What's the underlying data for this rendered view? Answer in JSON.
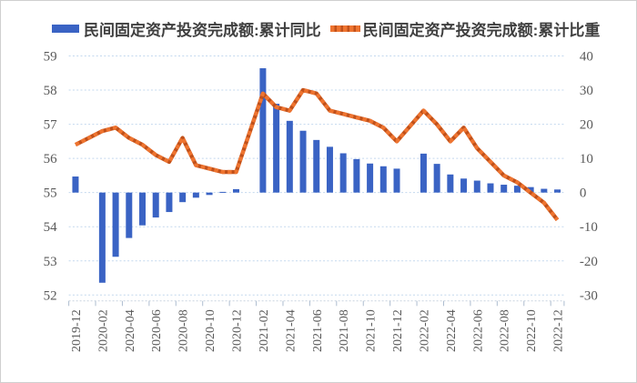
{
  "legend": [
    {
      "label": "民间固定资产投资完成额:累计同比",
      "marker": "bar-swatch",
      "color": "#3a63c4"
    },
    {
      "label": "民间固定资产投资完成额:累计比重",
      "marker": "dashed-line-swatch",
      "color": "#ed7230",
      "color_dark": "#c1511a"
    }
  ],
  "colors": {
    "bar": "#3a63c4",
    "line": "#ee7430",
    "line_dark": "#c1511a",
    "grid": "#c3d8ee",
    "axis_line": "#c9d4e0",
    "axis_text": "#595959",
    "legend_text": "#3f3f3f",
    "background": "#ffffff"
  },
  "chart_data": {
    "type": "bar",
    "subtype": "dual-axis bar + dashed line, monthly (January slots empty)",
    "title": "",
    "xlabel": "",
    "ylabel_left": "",
    "ylabel_right": "",
    "grid": "horizontal dashed",
    "legend_position": "top",
    "categories": [
      "2019-12",
      "2020-02",
      "2020-03",
      "2020-04",
      "2020-05",
      "2020-06",
      "2020-07",
      "2020-08",
      "2020-09",
      "2020-10",
      "2020-11",
      "2020-12",
      "2021-02",
      "2021-03",
      "2021-04",
      "2021-05",
      "2021-06",
      "2021-07",
      "2021-08",
      "2021-09",
      "2021-10",
      "2021-11",
      "2021-12",
      "2022-02",
      "2022-03",
      "2022-04",
      "2022-05",
      "2022-06",
      "2022-07",
      "2022-08",
      "2022-09",
      "2022-10",
      "2022-11",
      "2022-12"
    ],
    "x_tick_labels": [
      "2019-12",
      "2020-02",
      "2020-04",
      "2020-06",
      "2020-08",
      "2020-10",
      "2020-12",
      "2021-02",
      "2021-04",
      "2021-06",
      "2021-08",
      "2021-10",
      "2021-12",
      "2022-02",
      "2022-04",
      "2022-06",
      "2022-08",
      "2022-10",
      "2022-12"
    ],
    "series": [
      {
        "name": "民间固定资产投资完成额:累计同比",
        "type": "bar",
        "axis": "right",
        "unit": "%",
        "values": [
          4.7,
          -26.4,
          -18.8,
          -13.3,
          -9.6,
          -7.3,
          -5.7,
          -2.8,
          -1.5,
          -0.7,
          0.2,
          1.0,
          36.4,
          26.0,
          21.0,
          18.1,
          15.4,
          13.4,
          11.5,
          9.8,
          8.5,
          7.7,
          7.0,
          11.4,
          8.4,
          5.3,
          4.1,
          3.5,
          2.7,
          2.3,
          2.0,
          1.6,
          1.1,
          0.9
        ]
      },
      {
        "name": "民间固定资产投资完成额:累计比重",
        "type": "line",
        "axis": "left",
        "unit": "%",
        "values": [
          56.4,
          56.8,
          56.9,
          56.6,
          56.4,
          56.1,
          55.9,
          56.6,
          55.8,
          55.7,
          55.6,
          55.6,
          57.9,
          57.5,
          57.4,
          58.0,
          57.9,
          57.4,
          57.3,
          57.2,
          57.1,
          56.9,
          56.5,
          57.4,
          57.0,
          56.5,
          56.9,
          56.3,
          55.9,
          55.5,
          55.3,
          55.0,
          54.7,
          54.2
        ]
      }
    ],
    "left_axis": {
      "min": 52,
      "max": 59,
      "ticks": [
        59,
        58,
        57,
        56,
        55,
        54,
        53,
        52
      ]
    },
    "right_axis": {
      "min": -30,
      "max": 40,
      "ticks": [
        40,
        30,
        20,
        10,
        0,
        -10,
        -20,
        -30
      ]
    }
  }
}
